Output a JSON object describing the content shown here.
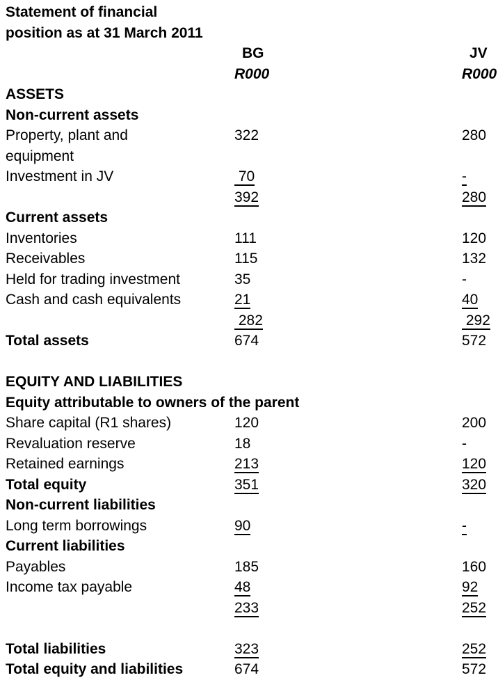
{
  "document": {
    "title_line1": "Statement of financial",
    "title_line2": "position as at 31 March 2011",
    "columns": {
      "bg_label": "BG",
      "jv_label": "JV",
      "bg_unit": "R000",
      "jv_unit": "R000"
    },
    "rows": [
      {
        "label": "ASSETS",
        "bold": true
      },
      {
        "label": "Non-current assets",
        "bold": true
      },
      {
        "label": "Property, plant and\nequipment",
        "bg": "322",
        "jv": "280"
      },
      {
        "label": "Investment in JV",
        "bg": " 70",
        "bg_u": true,
        "jv": "-",
        "jv_u": true
      },
      {
        "label": "",
        "bg": "392",
        "bg_u": true,
        "jv": "280",
        "jv_u": true
      },
      {
        "label": "Current assets",
        "bold": true
      },
      {
        "label": "Inventories",
        "bg": "111",
        "jv": "120"
      },
      {
        "label": "Receivables",
        "bg": "115",
        "jv": "132"
      },
      {
        "label": "Held for trading investment",
        "bg": "35",
        "jv": "-"
      },
      {
        "label": "Cash and cash equivalents",
        "bg": "21",
        "bg_u": true,
        "jv": "40",
        "jv_u": true
      },
      {
        "label": "",
        "bg": " 282",
        "bg_u": true,
        "jv": " 292",
        "jv_u": true
      },
      {
        "label": "Total assets",
        "bold": true,
        "bg": "674",
        "jv": "572"
      },
      {
        "label": ""
      },
      {
        "label": "EQUITY AND LIABILITIES",
        "bold": true
      },
      {
        "label": "Equity attributable to owners of the parent",
        "bold": true
      },
      {
        "label": "Share capital (R1 shares)",
        "bg": "120",
        "jv": "200"
      },
      {
        "label": "Revaluation reserve",
        "bg": "18",
        "jv": "-"
      },
      {
        "label": "Retained earnings",
        "bg": "213",
        "bg_u": true,
        "jv": "120",
        "jv_u": true
      },
      {
        "label": "Total equity",
        "bold": true,
        "bg": "351",
        "bg_u": true,
        "jv": "320",
        "jv_u": true
      },
      {
        "label": "Non-current liabilities",
        "bold": true
      },
      {
        "label": "Long term borrowings",
        "bg": "90",
        "bg_u": true,
        "jv": "-",
        "jv_u": true
      },
      {
        "label": "Current liabilities",
        "bold": true
      },
      {
        "label": "Payables",
        "bg": "185",
        "jv": "160"
      },
      {
        "label": "Income tax payable",
        "bg": "48",
        "bg_u": true,
        "jv": "92",
        "jv_u": true
      },
      {
        "label": "",
        "bg": "233",
        "bg_u": true,
        "jv": "252",
        "jv_u": true
      },
      {
        "label": ""
      },
      {
        "label": "Total liabilities",
        "bold": true,
        "bg": "323",
        "bg_u": true,
        "jv": "252",
        "jv_u": true
      },
      {
        "label": "Total equity and liabilities",
        "bold": true,
        "bg": "674",
        "jv": "572"
      }
    ]
  }
}
